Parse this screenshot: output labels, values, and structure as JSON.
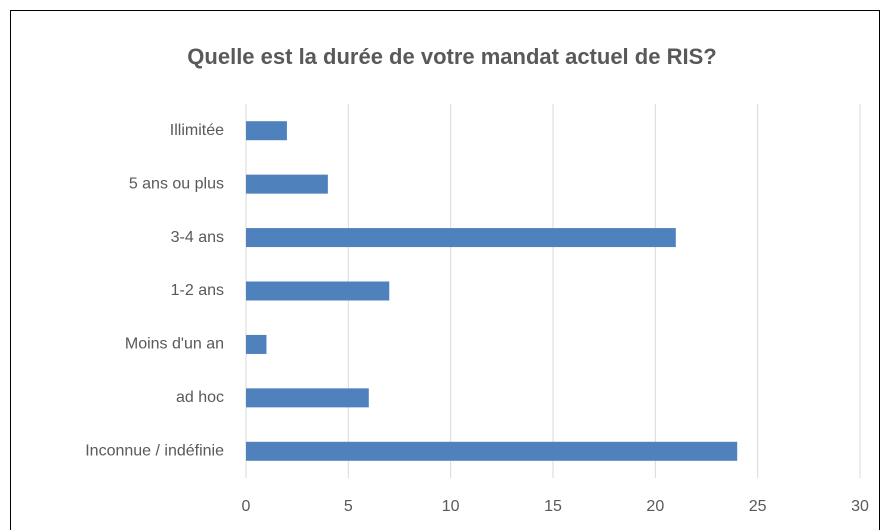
{
  "chart_data": {
    "type": "bar",
    "orientation": "horizontal",
    "title": "Quelle est la durée de votre mandat actuel de RIS?",
    "categories": [
      "Illimitée",
      "5 ans ou plus",
      "3-4 ans",
      "1-2 ans",
      "Moins d'un an",
      "ad hoc",
      "Inconnue / indéfinie"
    ],
    "values": [
      2,
      4,
      21,
      7,
      1,
      6,
      24
    ],
    "color": "#4f81bd",
    "xlim": [
      0,
      30
    ],
    "xticks": [
      0,
      5,
      10,
      15,
      20,
      25,
      30
    ],
    "grid": true
  }
}
